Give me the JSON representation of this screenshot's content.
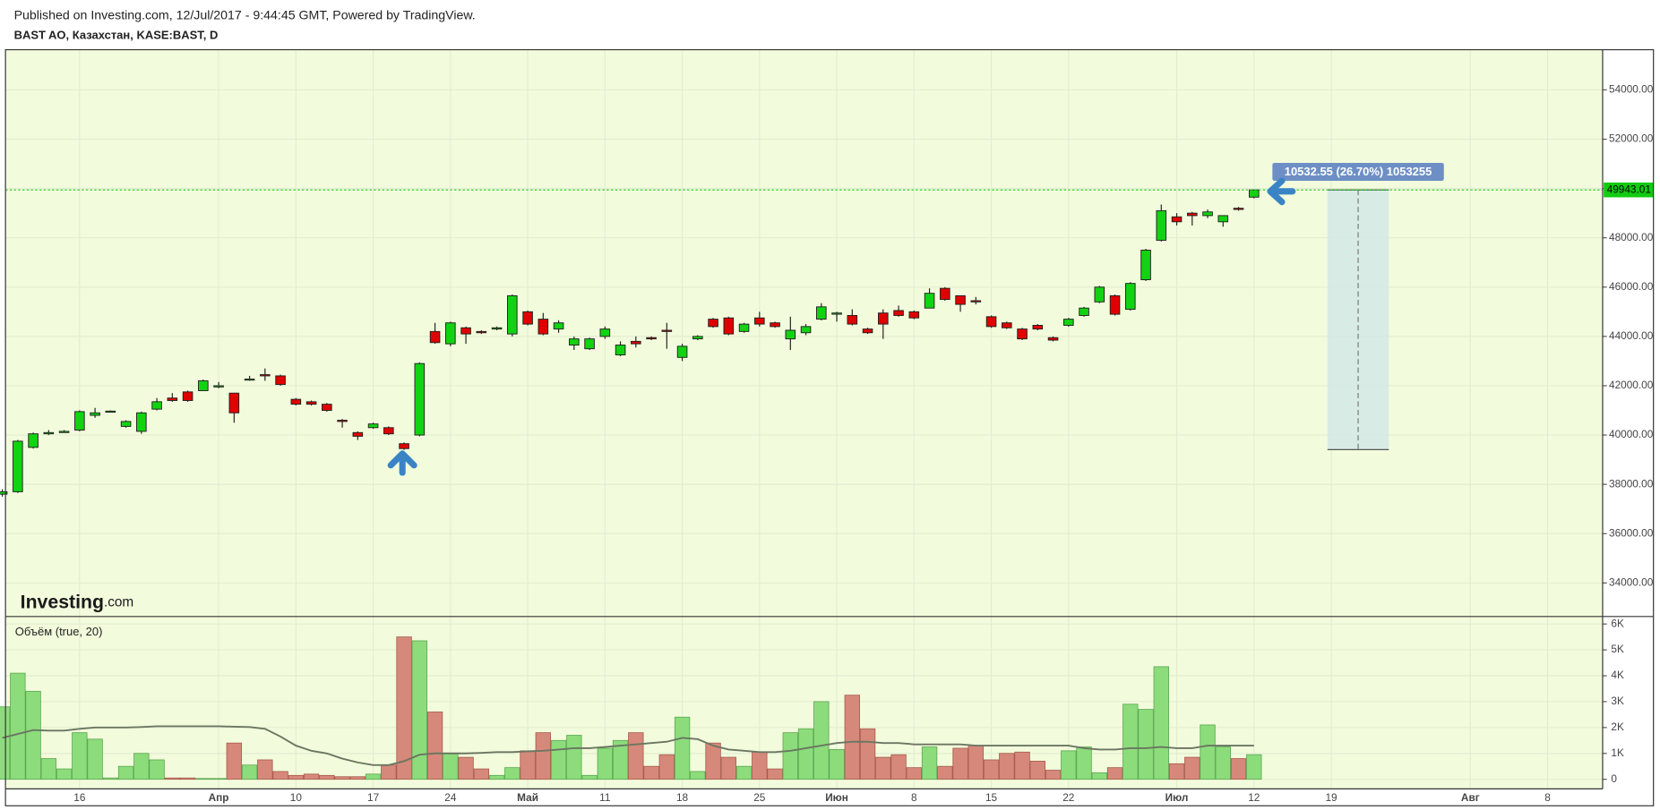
{
  "header": {
    "published": "Published on Investing.com, 12/Jul/2017 - 9:44:45 GMT, Powered by TradingView.",
    "symbol": "BAST AO, Казахстан, KASE:BAST, D"
  },
  "chart_data": [
    {
      "type": "candlestick",
      "background": "#f2fcdc",
      "up_color": "#12d312",
      "down_color": "#e00000",
      "grid": true,
      "logo": "Investing",
      "logo_suffix": ".com",
      "categories": [
        null,
        null,
        null,
        null,
        null,
        "16",
        null,
        null,
        null,
        null,
        null,
        null,
        null,
        null,
        "Апр",
        null,
        null,
        null,
        null,
        "10",
        null,
        null,
        null,
        null,
        "17",
        null,
        null,
        null,
        null,
        "24",
        null,
        null,
        null,
        null,
        "Май",
        null,
        null,
        null,
        null,
        "11",
        null,
        null,
        null,
        null,
        "18",
        null,
        null,
        null,
        null,
        "25",
        null,
        null,
        null,
        null,
        "Июн",
        null,
        null,
        null,
        null,
        "8",
        null,
        null,
        null,
        null,
        "15",
        null,
        null,
        null,
        null,
        "22",
        null,
        null,
        null,
        null,
        null,
        null,
        "Июл",
        null,
        null,
        null,
        null,
        "12",
        null,
        null,
        null,
        null,
        "19",
        null,
        null,
        null,
        null,
        null,
        null,
        null,
        null,
        "Авг",
        null,
        null,
        null,
        null,
        "8",
        null,
        null,
        null
      ],
      "open": [
        37600,
        37700,
        39500,
        40050,
        40100,
        40200,
        40800,
        40950,
        40350,
        40150,
        41050,
        41500,
        41750,
        41800,
        41950,
        41700,
        42250,
        42450,
        42400,
        41450,
        41350,
        41250,
        40600,
        40100,
        40300,
        40300,
        39650,
        40000,
        44200,
        43700,
        44350,
        44200,
        44300,
        44100,
        45000,
        44700,
        44300,
        43650,
        43500,
        44000,
        43250,
        43800,
        43950,
        44250,
        43150,
        43900,
        44700,
        44750,
        44200,
        44750,
        44550,
        43900,
        44150,
        44700,
        44900,
        44850,
        44300,
        44950,
        45050,
        45000,
        45150,
        45950,
        45650,
        45450,
        44800,
        44550,
        44300,
        44450,
        43950,
        44450,
        44850,
        45400,
        45650,
        45100,
        46300,
        47900,
        48850,
        49000,
        48900,
        48650,
        49200,
        49650,
        null,
        null,
        null,
        null,
        null,
        null,
        null,
        null,
        null,
        null,
        null,
        null,
        null,
        null,
        null,
        null,
        null,
        null,
        null,
        null,
        null,
        null
      ],
      "high": [
        37800,
        39800,
        40100,
        40200,
        40200,
        41000,
        41100,
        41000,
        40600,
        40950,
        41500,
        41700,
        41800,
        42250,
        42150,
        41700,
        42400,
        42700,
        42450,
        41500,
        41400,
        41300,
        40650,
        40150,
        40500,
        40350,
        39700,
        42950,
        44550,
        44600,
        44400,
        44250,
        44400,
        45700,
        45050,
        44950,
        44650,
        44000,
        43950,
        44400,
        43800,
        44000,
        44000,
        44550,
        43700,
        44050,
        44750,
        44800,
        44550,
        45000,
        44600,
        44800,
        44500,
        45350,
        45000,
        45100,
        44350,
        45100,
        45250,
        45050,
        45950,
        46000,
        45650,
        45600,
        44850,
        44600,
        44350,
        44500,
        44000,
        44750,
        45200,
        46050,
        45700,
        46200,
        47550,
        49350,
        49000,
        49050,
        49150,
        48900,
        49250,
        49950,
        null,
        null,
        null,
        null,
        null,
        null,
        null,
        null,
        null,
        null,
        null,
        null,
        null,
        null,
        null,
        null,
        null,
        null,
        null,
        null,
        null,
        null
      ],
      "low": [
        37500,
        37650,
        39450,
        40000,
        40100,
        40150,
        40700,
        40950,
        40300,
        40050,
        41000,
        41350,
        41350,
        41800,
        41900,
        40500,
        42200,
        42200,
        42000,
        41200,
        41200,
        40950,
        40300,
        39800,
        40250,
        40000,
        39400,
        39950,
        43700,
        43600,
        43700,
        44100,
        44250,
        44000,
        44450,
        44050,
        44150,
        43450,
        43450,
        43900,
        43200,
        43550,
        43850,
        43500,
        43000,
        43850,
        44350,
        44050,
        44150,
        44400,
        44350,
        43450,
        44050,
        44650,
        44600,
        44450,
        44100,
        43900,
        44800,
        44700,
        45150,
        45450,
        45000,
        45300,
        44350,
        44300,
        43850,
        44250,
        43800,
        44400,
        44800,
        45350,
        44850,
        45050,
        46250,
        47850,
        48500,
        48500,
        48800,
        48450,
        49100,
        49600,
        null,
        null,
        null,
        null,
        null,
        null,
        null,
        null,
        null,
        null,
        null,
        null,
        null,
        null,
        null,
        null,
        null,
        null,
        null,
        null,
        null,
        null
      ],
      "close": [
        37700,
        39750,
        40050,
        40100,
        40150,
        40950,
        40900,
        40970,
        40550,
        40900,
        41350,
        41400,
        41400,
        42200,
        42000,
        40900,
        42270,
        42400,
        42050,
        41250,
        41250,
        41000,
        40550,
        39950,
        40450,
        40050,
        39450,
        42900,
        43750,
        44550,
        44100,
        44150,
        44350,
        45650,
        44500,
        44100,
        44550,
        43900,
        43900,
        44300,
        43650,
        43700,
        43900,
        44200,
        43600,
        44000,
        44400,
        44100,
        44500,
        44500,
        44400,
        44250,
        44400,
        45200,
        44950,
        44500,
        44150,
        44500,
        44850,
        44750,
        45750,
        45500,
        45300,
        45400,
        44400,
        44350,
        43900,
        44300,
        43850,
        44700,
        45150,
        46000,
        44900,
        46150,
        47500,
        49100,
        48650,
        48900,
        49050,
        48900,
        49150,
        49943.01,
        null,
        null,
        null,
        null,
        null,
        null,
        null,
        null,
        null,
        null,
        null,
        null,
        null,
        null,
        null,
        null,
        null,
        null,
        null,
        null,
        null,
        null
      ],
      "ylim": [
        32640,
        55630
      ],
      "yticks": [
        {
          "value": 34000,
          "label": "34000.00"
        },
        {
          "value": 36000,
          "label": "36000.00"
        },
        {
          "value": 38000,
          "label": "38000.00"
        },
        {
          "value": 40000,
          "label": "40000.00"
        },
        {
          "value": 42000,
          "label": "42000.00"
        },
        {
          "value": 44000,
          "label": "44000.00"
        },
        {
          "value": 46000,
          "label": "46000.00"
        },
        {
          "value": 48000,
          "label": "48000.00"
        },
        {
          "value": 50000,
          "label": "50000.00"
        },
        {
          "value": 52000,
          "label": "52000.00"
        },
        {
          "value": 54000,
          "label": "54000.00"
        }
      ],
      "last_price": 49943.01,
      "last_price_color": "#11cc11",
      "measure": {
        "from": 39410.46,
        "to": 49943.01,
        "label": "10532.55 (26.70%) 1053255"
      }
    },
    {
      "type": "bar",
      "title": "Объём (true, 20)",
      "up_color": "#8cdc7c",
      "down_color": "#d6897a",
      "ma_color": "#6b7662",
      "values": [
        2800,
        4100,
        3400,
        800,
        400,
        1800,
        1550,
        50,
        500,
        1000,
        750,
        50,
        50,
        30,
        30,
        1400,
        550,
        750,
        300,
        150,
        200,
        150,
        100,
        100,
        200,
        550,
        5500,
        5350,
        2600,
        1000,
        850,
        400,
        150,
        450,
        1100,
        1800,
        1500,
        1700,
        150,
        1200,
        1500,
        1800,
        500,
        950,
        2400,
        300,
        1400,
        850,
        500,
        1050,
        400,
        1800,
        1950,
        3000,
        1150,
        3250,
        1950,
        850,
        950,
        450,
        1250,
        500,
        1200,
        1300,
        750,
        1000,
        1050,
        700,
        350,
        1100,
        1250,
        250,
        450,
        2900,
        2700,
        4350,
        600,
        850,
        2100,
        1250,
        800,
        950,
        null,
        null,
        null,
        null,
        null,
        null,
        null,
        null,
        null,
        null,
        null,
        null,
        null,
        null,
        null,
        null,
        null,
        null,
        null,
        null,
        null,
        null
      ],
      "moving_average": [
        1600,
        1750,
        1900,
        1880,
        1880,
        1950,
        2000,
        2000,
        2000,
        2020,
        2050,
        2050,
        2050,
        2050,
        2050,
        2030,
        2020,
        1950,
        1650,
        1300,
        1100,
        1000,
        800,
        650,
        550,
        550,
        700,
        950,
        1000,
        1000,
        1000,
        1020,
        1050,
        1050,
        1080,
        1100,
        1150,
        1200,
        1200,
        1250,
        1300,
        1350,
        1400,
        1450,
        1600,
        1550,
        1300,
        1150,
        1100,
        1050,
        1050,
        1100,
        1200,
        1300,
        1400,
        1450,
        1450,
        1400,
        1400,
        1350,
        1350,
        1350,
        1350,
        1300,
        1300,
        1300,
        1300,
        1300,
        1300,
        1300,
        1200,
        1150,
        1150,
        1200,
        1200,
        1250,
        1200,
        1200,
        1300,
        1300,
        1300,
        1300,
        null,
        null,
        null,
        null,
        null,
        null,
        null,
        null,
        null,
        null,
        null,
        null,
        null,
        null,
        null,
        null,
        null,
        null,
        null,
        null,
        null,
        null
      ],
      "ylim": [
        -370,
        6290
      ],
      "yticks": [
        0,
        {
          "value": 1000,
          "label": "1K"
        },
        {
          "value": 2000,
          "label": "2K"
        },
        {
          "value": 3000,
          "label": "3K"
        },
        {
          "value": 4000,
          "label": "4K"
        },
        {
          "value": 5000,
          "label": "5K"
        },
        {
          "value": 6000,
          "label": "6K"
        }
      ]
    }
  ]
}
